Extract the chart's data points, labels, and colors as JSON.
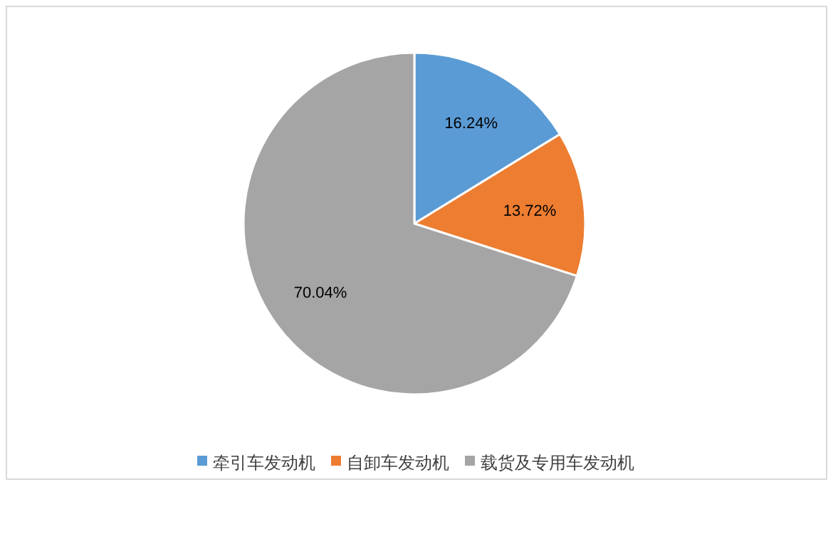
{
  "chart_data": {
    "type": "pie",
    "categories": [
      "牵引车发动机",
      "自卸车发动机",
      "载货及专用车发动机"
    ],
    "values": [
      16.24,
      13.72,
      70.04
    ],
    "colors": [
      "#5b9bd5",
      "#ed7d31",
      "#a5a5a5"
    ],
    "value_labels": [
      "16.24%",
      "13.72%",
      "70.04%"
    ],
    "legend": "bottom"
  }
}
